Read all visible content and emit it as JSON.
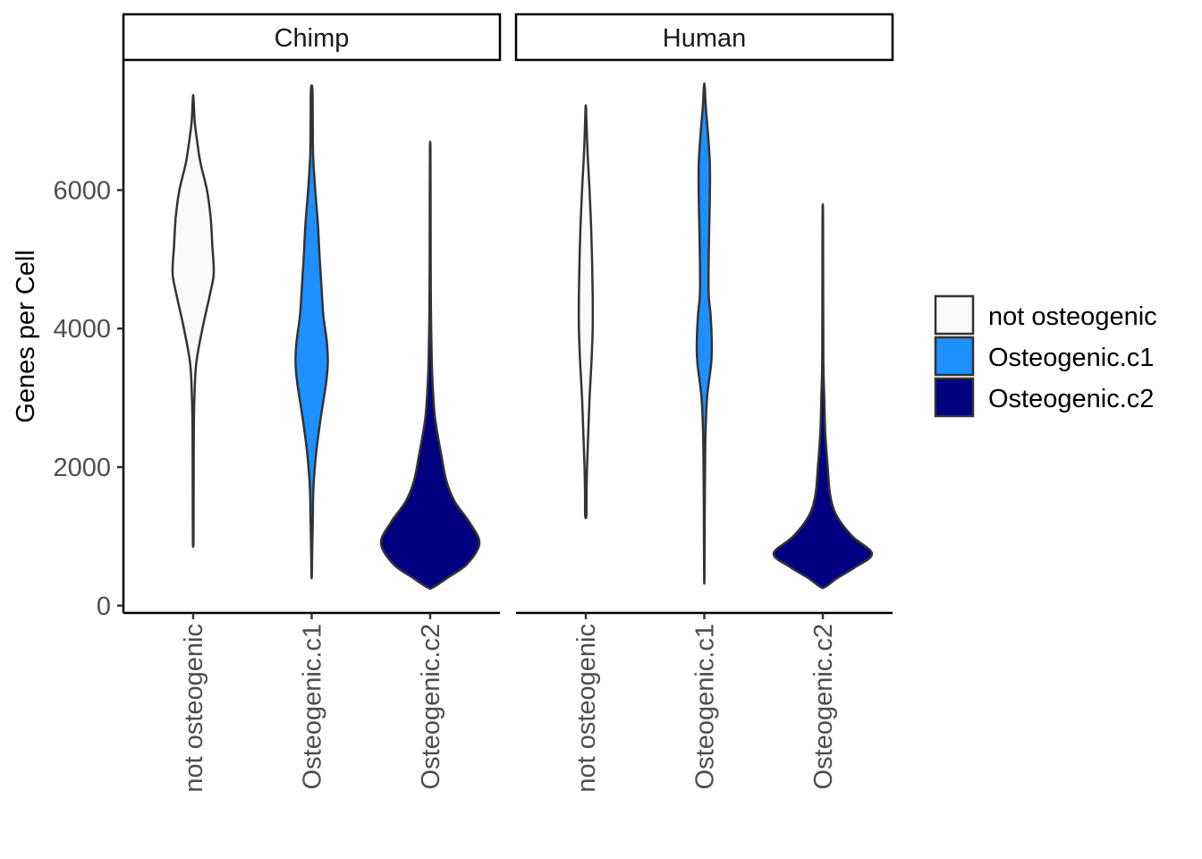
{
  "chart_data": {
    "type": "violin",
    "facets": [
      "Chimp",
      "Human"
    ],
    "categories": [
      "not osteogenic",
      "Osteogenic.c1",
      "Osteogenic.c2"
    ],
    "ylabel": "Genes per Cell",
    "xlabel": "",
    "ylim": [
      0,
      7800
    ],
    "yticks": [
      0,
      2000,
      4000,
      6000
    ],
    "legend": {
      "placement": "right",
      "entries": [
        "not osteogenic",
        "Osteogenic.c1",
        "Osteogenic.c2"
      ]
    },
    "colors": {
      "not osteogenic": "#fafafa",
      "Osteogenic.c1": "#1e90ff",
      "Osteogenic.c2": "#000080",
      "outline": "#333333"
    },
    "grid": false,
    "series": [
      {
        "facet": "Chimp",
        "category": "not osteogenic",
        "min": 920,
        "max": 7330,
        "density": [
          [
            920,
            0.015
          ],
          [
            1500,
            0.02
          ],
          [
            2000,
            0.025
          ],
          [
            2500,
            0.03
          ],
          [
            3000,
            0.06
          ],
          [
            3500,
            0.15
          ],
          [
            4000,
            0.45
          ],
          [
            4500,
            0.82
          ],
          [
            4800,
            1.0
          ],
          [
            5200,
            0.93
          ],
          [
            5600,
            0.85
          ],
          [
            6000,
            0.67
          ],
          [
            6400,
            0.35
          ],
          [
            6800,
            0.15
          ],
          [
            7000,
            0.07
          ],
          [
            7330,
            0.015
          ]
        ]
      },
      {
        "facet": "Chimp",
        "category": "Osteogenic.c1",
        "min": 440,
        "max": 7500,
        "density": [
          [
            440,
            0.01
          ],
          [
            800,
            0.03
          ],
          [
            1200,
            0.06
          ],
          [
            1700,
            0.1
          ],
          [
            2200,
            0.25
          ],
          [
            2700,
            0.5
          ],
          [
            3200,
            0.8
          ],
          [
            3500,
            0.9
          ],
          [
            3800,
            0.85
          ],
          [
            4200,
            0.65
          ],
          [
            4600,
            0.55
          ],
          [
            5000,
            0.45
          ],
          [
            5500,
            0.35
          ],
          [
            6000,
            0.2
          ],
          [
            6500,
            0.08
          ],
          [
            7000,
            0.06
          ],
          [
            7400,
            0.05
          ],
          [
            7500,
            0.02
          ]
        ]
      },
      {
        "facet": "Chimp",
        "category": "Osteogenic.c2",
        "min": 260,
        "max": 6620,
        "density": [
          [
            260,
            0.05
          ],
          [
            400,
            0.35
          ],
          [
            600,
            0.75
          ],
          [
            900,
            1.0
          ],
          [
            1200,
            0.8
          ],
          [
            1500,
            0.5
          ],
          [
            1800,
            0.33
          ],
          [
            2200,
            0.22
          ],
          [
            2700,
            0.1
          ],
          [
            3200,
            0.05
          ],
          [
            3600,
            0.03
          ],
          [
            4300,
            0.015
          ],
          [
            5000,
            0.01
          ],
          [
            6000,
            0.008
          ],
          [
            6620,
            0.005
          ]
        ]
      },
      {
        "facet": "Human",
        "category": "not osteogenic",
        "min": 1300,
        "max": 7200,
        "density": [
          [
            1300,
            0.05
          ],
          [
            1600,
            0.06
          ],
          [
            2000,
            0.1
          ],
          [
            2500,
            0.2
          ],
          [
            3000,
            0.3
          ],
          [
            3500,
            0.45
          ],
          [
            4000,
            0.55
          ],
          [
            4500,
            0.55
          ],
          [
            5000,
            0.5
          ],
          [
            5500,
            0.42
          ],
          [
            6000,
            0.3
          ],
          [
            6500,
            0.15
          ],
          [
            7000,
            0.05
          ],
          [
            7200,
            0.02
          ]
        ]
      },
      {
        "facet": "Human",
        "category": "Osteogenic.c1",
        "min": 360,
        "max": 7500,
        "density": [
          [
            360,
            0.01
          ],
          [
            700,
            0.02
          ],
          [
            1000,
            0.03
          ],
          [
            1500,
            0.04
          ],
          [
            2000,
            0.06
          ],
          [
            2500,
            0.1
          ],
          [
            3000,
            0.22
          ],
          [
            3500,
            0.55
          ],
          [
            3800,
            0.6
          ],
          [
            4200,
            0.5
          ],
          [
            4500,
            0.35
          ],
          [
            5000,
            0.35
          ],
          [
            5500,
            0.4
          ],
          [
            6000,
            0.45
          ],
          [
            6400,
            0.44
          ],
          [
            6800,
            0.3
          ],
          [
            7200,
            0.12
          ],
          [
            7500,
            0.03
          ]
        ]
      },
      {
        "facet": "Human",
        "category": "Osteogenic.c2",
        "min": 270,
        "max": 5650,
        "density": [
          [
            270,
            0.05
          ],
          [
            400,
            0.3
          ],
          [
            550,
            0.65
          ],
          [
            750,
            1.0
          ],
          [
            1000,
            0.6
          ],
          [
            1300,
            0.28
          ],
          [
            1600,
            0.15
          ],
          [
            2000,
            0.1
          ],
          [
            2500,
            0.05
          ],
          [
            3000,
            0.03
          ],
          [
            3500,
            0.012
          ],
          [
            4500,
            0.008
          ],
          [
            5650,
            0.005
          ]
        ]
      }
    ]
  }
}
